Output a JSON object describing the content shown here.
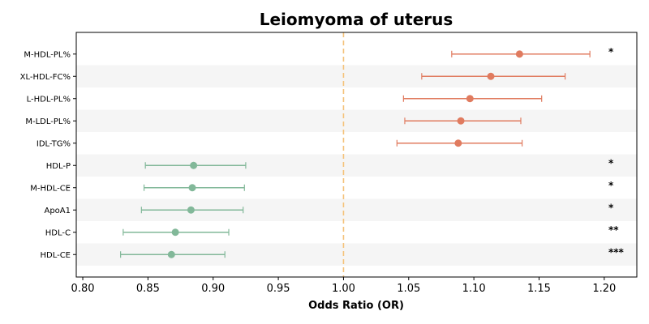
{
  "chart_data": {
    "type": "forest",
    "title": "Leiomyoma of uterus",
    "xlabel": "Odds Ratio (OR)",
    "xlim": [
      0.795,
      1.225
    ],
    "xticks": [
      "0.80",
      "0.85",
      "0.90",
      "0.95",
      "1.00",
      "1.05",
      "1.10",
      "1.15",
      "1.20"
    ],
    "reference_line": 1.0,
    "grid": false,
    "row_striping": true,
    "colors": {
      "positive": "#E07B5F",
      "negative": "#82B899",
      "reference": "#F5C27A",
      "stripe": "#F5F5F5"
    },
    "rows": [
      {
        "label": "M-HDL-PL%",
        "or": 1.135,
        "ci_low": 1.083,
        "ci_high": 1.189,
        "sig": "*"
      },
      {
        "label": "XL-HDL-FC%",
        "or": 1.113,
        "ci_low": 1.06,
        "ci_high": 1.17,
        "sig": ""
      },
      {
        "label": "L-HDL-PL%",
        "or": 1.097,
        "ci_low": 1.046,
        "ci_high": 1.152,
        "sig": ""
      },
      {
        "label": "M-LDL-PL%",
        "or": 1.09,
        "ci_low": 1.047,
        "ci_high": 1.136,
        "sig": ""
      },
      {
        "label": "IDL-TG%",
        "or": 1.088,
        "ci_low": 1.041,
        "ci_high": 1.137,
        "sig": ""
      },
      {
        "label": "HDL-P",
        "or": 0.885,
        "ci_low": 0.848,
        "ci_high": 0.925,
        "sig": "*"
      },
      {
        "label": "M-HDL-CE",
        "or": 0.884,
        "ci_low": 0.847,
        "ci_high": 0.924,
        "sig": "*"
      },
      {
        "label": "ApoA1",
        "or": 0.883,
        "ci_low": 0.845,
        "ci_high": 0.923,
        "sig": "*"
      },
      {
        "label": "HDL-C",
        "or": 0.871,
        "ci_low": 0.831,
        "ci_high": 0.912,
        "sig": "**"
      },
      {
        "label": "HDL-CE",
        "or": 0.868,
        "ci_low": 0.829,
        "ci_high": 0.909,
        "sig": "***"
      }
    ]
  }
}
